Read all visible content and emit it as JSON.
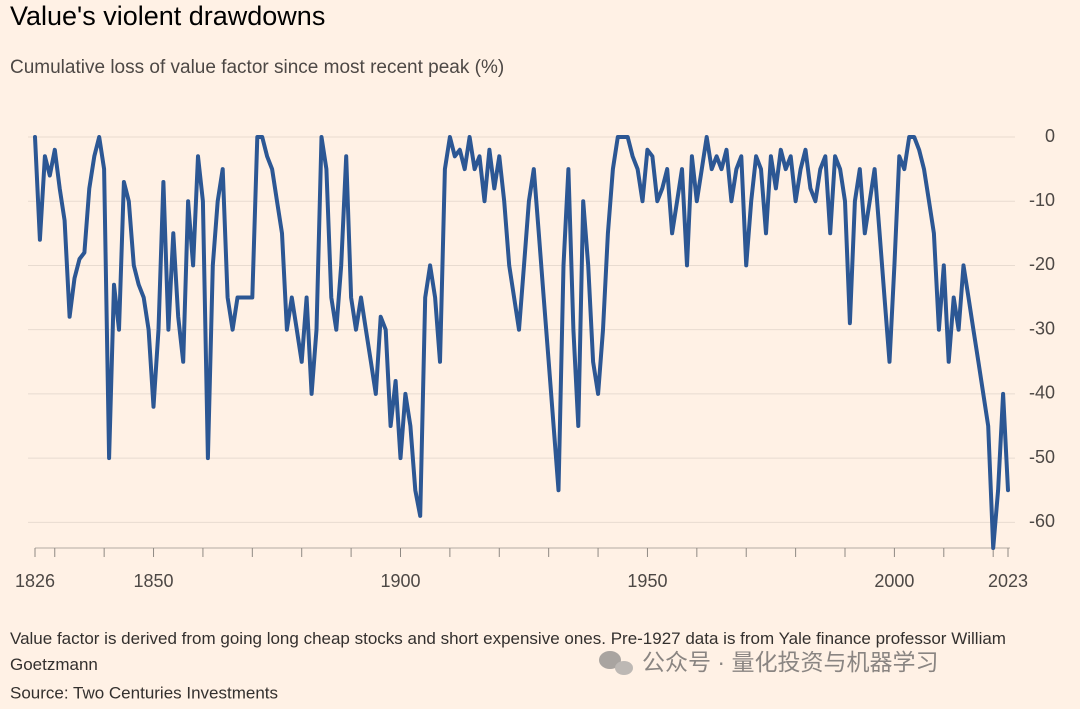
{
  "chart_data": {
    "type": "line",
    "title": "Value's violent drawdowns",
    "subtitle": "Cumulative loss of value factor since most recent peak (%)",
    "note": "Value factor is derived from going long cheap stocks and short expensive ones. Pre-1927 data is from Yale finance professor William Goetzmann",
    "source": "Source: Two Centuries Investments",
    "watermark": "公众号 · 量化投资与机器学习",
    "x": [
      1826,
      1827,
      1828,
      1829,
      1830,
      1831,
      1832,
      1833,
      1834,
      1835,
      1836,
      1837,
      1838,
      1839,
      1840,
      1841,
      1842,
      1843,
      1844,
      1845,
      1846,
      1847,
      1848,
      1849,
      1850,
      1851,
      1852,
      1853,
      1854,
      1855,
      1856,
      1857,
      1858,
      1859,
      1860,
      1861,
      1862,
      1863,
      1864,
      1865,
      1866,
      1867,
      1868,
      1869,
      1870,
      1871,
      1872,
      1873,
      1874,
      1875,
      1876,
      1877,
      1878,
      1879,
      1880,
      1881,
      1882,
      1883,
      1884,
      1885,
      1886,
      1887,
      1888,
      1889,
      1890,
      1891,
      1892,
      1893,
      1894,
      1895,
      1896,
      1897,
      1898,
      1899,
      1900,
      1901,
      1902,
      1903,
      1904,
      1905,
      1906,
      1907,
      1908,
      1909,
      1910,
      1911,
      1912,
      1913,
      1914,
      1915,
      1916,
      1917,
      1918,
      1919,
      1920,
      1921,
      1922,
      1923,
      1924,
      1925,
      1926,
      1927,
      1928,
      1929,
      1930,
      1931,
      1932,
      1933,
      1934,
      1935,
      1936,
      1937,
      1938,
      1939,
      1940,
      1941,
      1942,
      1943,
      1944,
      1945,
      1946,
      1947,
      1948,
      1949,
      1950,
      1951,
      1952,
      1953,
      1954,
      1955,
      1956,
      1957,
      1958,
      1959,
      1960,
      1961,
      1962,
      1963,
      1964,
      1965,
      1966,
      1967,
      1968,
      1969,
      1970,
      1971,
      1972,
      1973,
      1974,
      1975,
      1976,
      1977,
      1978,
      1979,
      1980,
      1981,
      1982,
      1983,
      1984,
      1985,
      1986,
      1987,
      1988,
      1989,
      1990,
      1991,
      1992,
      1993,
      1994,
      1995,
      1996,
      1997,
      1998,
      1999,
      2000,
      2001,
      2002,
      2003,
      2004,
      2005,
      2006,
      2007,
      2008,
      2009,
      2010,
      2011,
      2012,
      2013,
      2014,
      2015,
      2016,
      2017,
      2018,
      2019,
      2020,
      2021,
      2022,
      2023
    ],
    "series": [
      {
        "name": "Value factor drawdown",
        "color": "#2c5794",
        "values": [
          0,
          -16,
          -3,
          -6,
          -2,
          -8,
          -13,
          -28,
          -22,
          -19,
          -18,
          -8,
          -3,
          0,
          -5,
          -50,
          -23,
          -30,
          -7,
          -10,
          -20,
          -23,
          -25,
          -30,
          -42,
          -30,
          -7,
          -30,
          -15,
          -28,
          -35,
          -10,
          -20,
          -3,
          -10,
          -50,
          -20,
          -10,
          -5,
          -25,
          -30,
          -25,
          -25,
          -25,
          -25,
          0,
          0,
          -3,
          -5,
          -10,
          -15,
          -30,
          -25,
          -30,
          -35,
          -25,
          -40,
          -30,
          0,
          -5,
          -25,
          -30,
          -20,
          -3,
          -25,
          -30,
          -25,
          -30,
          -35,
          -40,
          -28,
          -30,
          -45,
          -38,
          -50,
          -40,
          -45,
          -55,
          -59,
          -25,
          -20,
          -25,
          -35,
          -5,
          0,
          -3,
          -2,
          -5,
          0,
          -5,
          -3,
          -10,
          -2,
          -8,
          -3,
          -10,
          -20,
          -25,
          -30,
          -20,
          -10,
          -5,
          -15,
          -25,
          -35,
          -45,
          -55,
          -20,
          -5,
          -30,
          -45,
          -10,
          -20,
          -35,
          -40,
          -30,
          -15,
          -5,
          0,
          0,
          0,
          -3,
          -5,
          -10,
          -2,
          -3,
          -10,
          -8,
          -5,
          -15,
          -10,
          -5,
          -20,
          -3,
          -10,
          -5,
          0,
          -5,
          -3,
          -5,
          -2,
          -10,
          -5,
          -3,
          -20,
          -10,
          -3,
          -5,
          -15,
          -3,
          -8,
          -2,
          -5,
          -3,
          -10,
          -5,
          -2,
          -8,
          -10,
          -5,
          -3,
          -15,
          -3,
          -5,
          -10,
          -29,
          -10,
          -5,
          -15,
          -10,
          -5,
          -15,
          -25,
          -35,
          -20,
          -3,
          -5,
          0,
          0,
          -2,
          -5,
          -10,
          -15,
          -30,
          -20,
          -35,
          -25,
          -30,
          -20,
          -25,
          -30,
          -35,
          -40,
          -45,
          -64,
          -55,
          -40,
          -55
        ]
      }
    ],
    "xlim": [
      1826,
      2023
    ],
    "xticks": [
      1826,
      1850,
      1900,
      1950,
      2000,
      2023
    ],
    "xminor_ticks": [
      1830,
      1840,
      1860,
      1870,
      1880,
      1890,
      1910,
      1920,
      1930,
      1940,
      1960,
      1970,
      1980,
      1990,
      2010,
      2020
    ],
    "ylim": [
      -64,
      0
    ],
    "yticks": [
      0,
      -10,
      -20,
      -30,
      -40,
      -50,
      -60
    ],
    "grid": true
  }
}
